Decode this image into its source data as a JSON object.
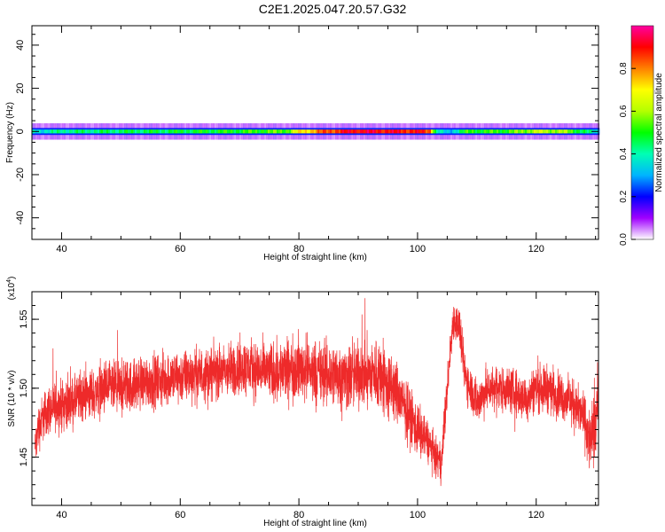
{
  "title": "C2E1.2025.047.20.57.G32",
  "chart_data": [
    {
      "type": "heatmap",
      "xlabel": "Height of straight line (km)",
      "ylabel": "Frequency (Hz)",
      "xlim": [
        35,
        130.5
      ],
      "ylim": [
        -50,
        49
      ],
      "xticks": [
        40,
        60,
        80,
        100,
        120
      ],
      "yticks": [
        -40,
        -20,
        0,
        20,
        40
      ],
      "band": {
        "center_hz": 0,
        "core_halfwidth_hz": 1.6,
        "halo_halfwidth_hz": 3.8,
        "x": [
          35,
          40,
          50,
          60,
          70,
          78,
          80,
          85,
          90,
          95,
          100,
          102,
          103,
          105,
          108,
          115,
          120,
          125,
          130
        ],
        "amplitude": [
          0.35,
          0.42,
          0.45,
          0.47,
          0.5,
          0.55,
          0.7,
          0.85,
          0.92,
          0.9,
          0.88,
          0.85,
          0.4,
          0.3,
          0.5,
          0.52,
          0.62,
          0.58,
          0.35
        ]
      },
      "colorbar": {
        "label": "Normalized spectral amplitude",
        "ticks": [
          "0.0",
          "0.2",
          "0.4",
          "0.6",
          "0.8"
        ],
        "tick_values": [
          0.0,
          0.2,
          0.4,
          0.6,
          0.8
        ],
        "range": [
          0,
          1
        ],
        "colormap": [
          "#ffffff",
          "#a000ff",
          "#0000ff",
          "#00b4ff",
          "#00ffb4",
          "#00ff00",
          "#b4ff00",
          "#ffff00",
          "#ff8000",
          "#ff0000",
          "#ff00a0"
        ]
      }
    },
    {
      "type": "line",
      "xlabel": "Height of straight line (km)",
      "ylabel": "SNR (10 * v/v)",
      "scale_label": "(x10",
      "scale_exponent": "4",
      "xlim": [
        35,
        130.5
      ],
      "ylim": [
        1.415,
        1.57
      ],
      "xticks": [
        40,
        60,
        80,
        100,
        120
      ],
      "yticks": [
        1.45,
        1.5,
        1.55
      ],
      "ytick_labels": [
        "1.45",
        "1.50",
        "1.55"
      ],
      "series": [
        {
          "color": "#ee2a2a",
          "x": [
            35.5,
            36,
            37,
            38,
            40,
            42,
            44,
            46,
            48,
            50,
            52,
            54,
            56,
            58,
            60,
            62,
            64,
            66,
            68,
            70,
            72,
            74,
            76,
            78,
            80,
            82,
            84,
            86,
            88,
            90,
            92,
            94,
            95,
            96,
            98,
            100,
            101,
            102,
            103,
            104,
            105,
            106,
            107,
            108,
            110,
            112,
            114,
            116,
            118,
            120,
            122,
            124,
            126,
            128,
            129,
            130,
            130.5
          ],
          "mean": [
            1.455,
            1.47,
            1.48,
            1.485,
            1.488,
            1.49,
            1.495,
            1.497,
            1.5,
            1.5,
            1.502,
            1.505,
            1.505,
            1.507,
            1.508,
            1.51,
            1.51,
            1.512,
            1.512,
            1.515,
            1.515,
            1.512,
            1.512,
            1.513,
            1.515,
            1.513,
            1.51,
            1.51,
            1.508,
            1.51,
            1.51,
            1.51,
            1.5,
            1.5,
            1.485,
            1.47,
            1.465,
            1.46,
            1.45,
            1.445,
            1.5,
            1.55,
            1.545,
            1.51,
            1.49,
            1.5,
            1.5,
            1.498,
            1.492,
            1.5,
            1.5,
            1.495,
            1.49,
            1.48,
            1.46,
            1.47,
            1.5
          ],
          "spread": [
            0.02,
            0.025,
            0.025,
            0.026,
            0.026,
            0.026,
            0.026,
            0.027,
            0.028,
            0.028,
            0.028,
            0.028,
            0.028,
            0.028,
            0.028,
            0.028,
            0.028,
            0.028,
            0.028,
            0.03,
            0.03,
            0.03,
            0.032,
            0.032,
            0.034,
            0.034,
            0.034,
            0.035,
            0.035,
            0.035,
            0.035,
            0.04,
            0.04,
            0.034,
            0.03,
            0.03,
            0.025,
            0.022,
            0.02,
            0.02,
            0.022,
            0.02,
            0.022,
            0.024,
            0.024,
            0.024,
            0.024,
            0.024,
            0.024,
            0.025,
            0.025,
            0.024,
            0.024,
            0.025,
            0.035,
            0.035,
            0.03
          ]
        }
      ]
    }
  ]
}
